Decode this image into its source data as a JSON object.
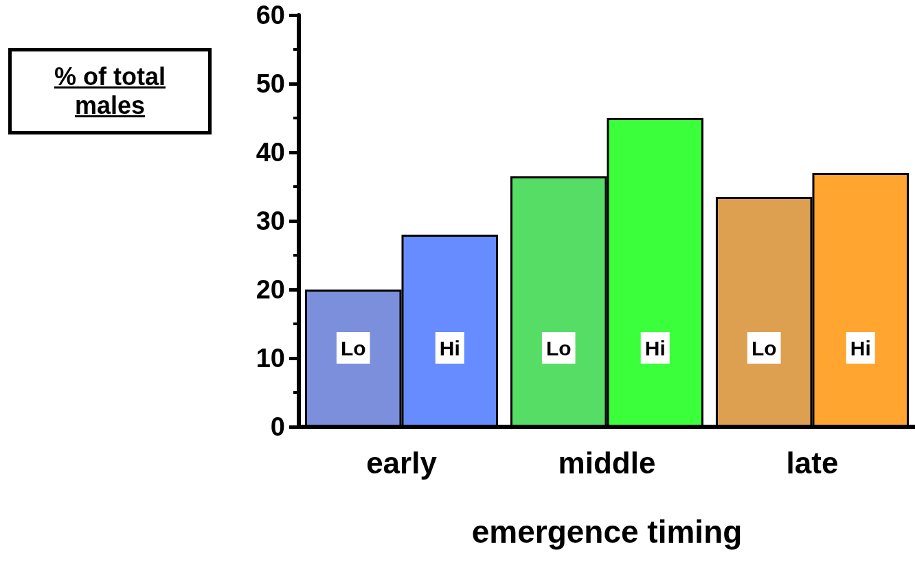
{
  "chart_data": {
    "type": "bar",
    "xlabel": "emergence timing",
    "ylabel": "% of total males",
    "categories": [
      "early",
      "middle",
      "late"
    ],
    "series": [
      {
        "name": "Lo",
        "colors": [
          "#7b8fdd",
          "#55dd66",
          "#dda050"
        ],
        "values": [
          20,
          36.5,
          33.5
        ]
      },
      {
        "name": "Hi",
        "colors": [
          "#668cff",
          "#3cff3c",
          "#ffa530"
        ],
        "values": [
          28,
          45,
          37
        ]
      }
    ],
    "ylim": [
      0,
      60
    ],
    "yticks": [
      0,
      10,
      20,
      30,
      40,
      50,
      60
    ],
    "grid": false,
    "legend": false
  }
}
